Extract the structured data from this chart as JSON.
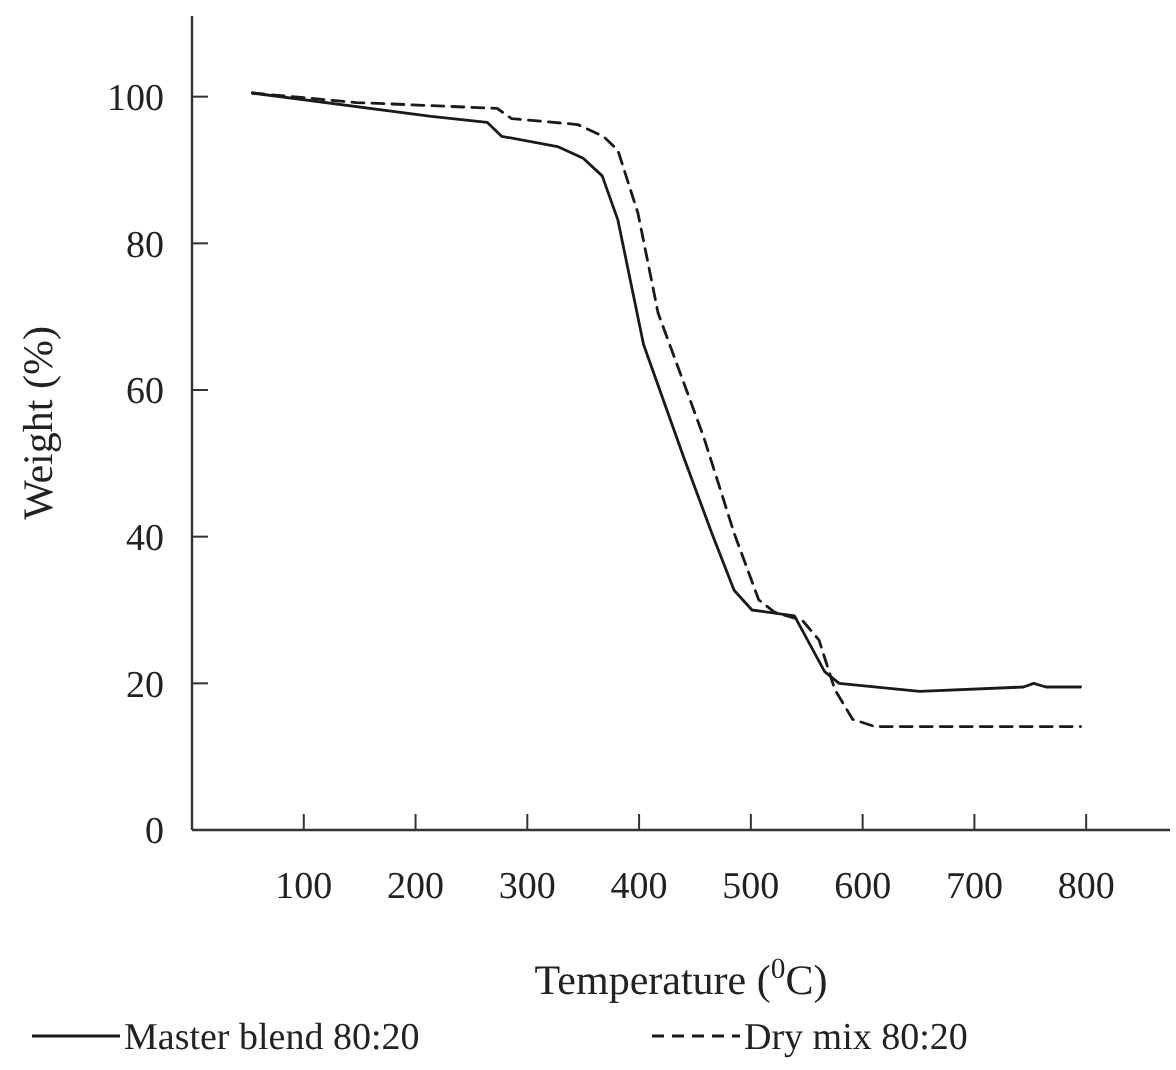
{
  "chart_data": {
    "type": "line",
    "xlabel": "Temperature ($^{0}$C)",
    "ylabel": "Weight (%)",
    "xlim": [
      0,
      875
    ],
    "ylim": [
      0,
      111
    ],
    "xticks": [
      100,
      200,
      300,
      400,
      500,
      600,
      700,
      800
    ],
    "yticks": [
      0,
      20,
      40,
      60,
      80,
      100
    ],
    "grid": false,
    "legend": "bottom",
    "marker": "none",
    "series": [
      {
        "name": "Master blend 80:20",
        "color": "#1a1a1a",
        "line_style": "solid",
        "x": [
          54,
          214,
          264,
          277,
          327,
          350,
          367,
          381,
          404,
          440,
          465,
          485,
          501,
          539,
          566,
          579,
          651,
          744,
          753,
          764,
          795
        ],
        "values": [
          100.5,
          97.3,
          96.5,
          94.6,
          93.2,
          91.6,
          89.2,
          83.2,
          66.2,
          50.8,
          40.5,
          32.7,
          30,
          29.2,
          21.6,
          20,
          18.9,
          19.5,
          20,
          19.5,
          19.5
        ]
      },
      {
        "name": "Dry mix 80:20",
        "color": "#1a1a1a",
        "line_style": "dashed",
        "x": [
          54,
          147,
          273,
          286,
          345,
          368,
          381,
          399,
          417,
          458,
          485,
          507,
          521,
          546,
          561,
          575,
          591,
          611,
          795
        ],
        "values": [
          100.5,
          99.2,
          98.4,
          97,
          96.2,
          94.6,
          92.7,
          84.1,
          70.5,
          53.5,
          40.5,
          31.4,
          29.7,
          28.6,
          25.9,
          19.2,
          15.1,
          14.1,
          14.1
        ]
      }
    ]
  }
}
